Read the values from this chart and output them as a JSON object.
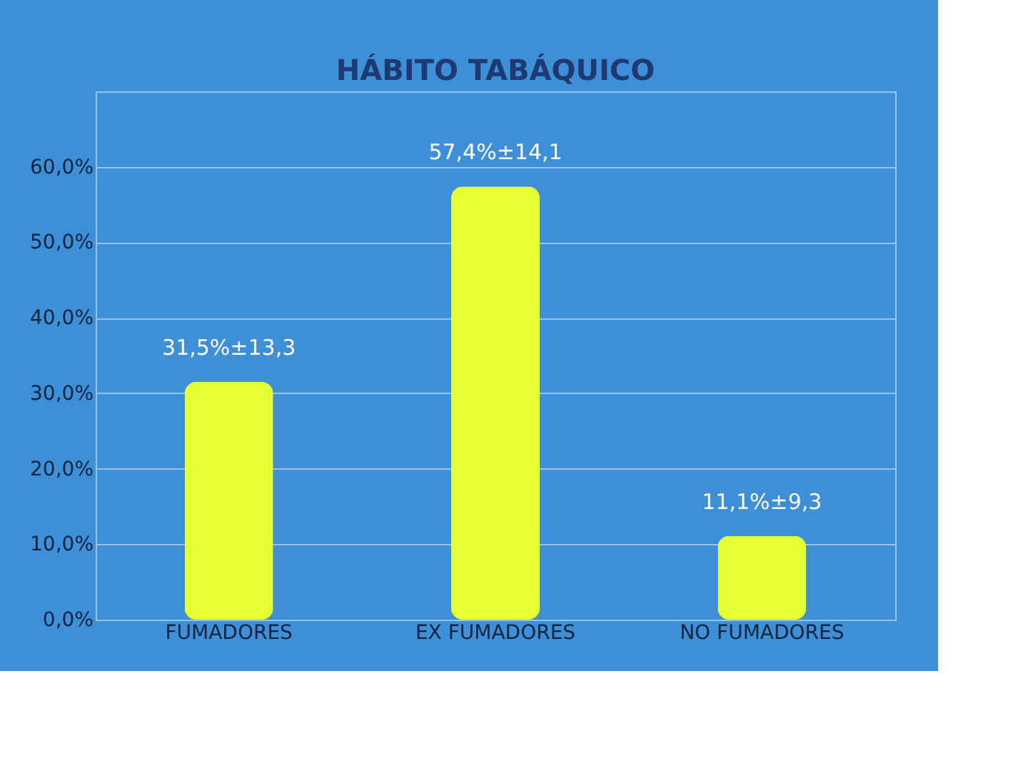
{
  "chart_data": {
    "type": "bar",
    "title": "HÁBITO TABÁQUICO",
    "categories": [
      "FUMADORES",
      "EX FUMADORES",
      "NO FUMADORES"
    ],
    "values": [
      31.5,
      57.4,
      11.1
    ],
    "value_labels": [
      "31,5%±13,3",
      "57,4%±14,1",
      "11,1%±9,3"
    ],
    "color": "#e6ff33",
    "ylim": [
      0,
      70
    ],
    "yticks": [
      {
        "value": 0,
        "label": "0,0%"
      },
      {
        "value": 10,
        "label": "10,0%"
      },
      {
        "value": 20,
        "label": "20,0%"
      },
      {
        "value": 30,
        "label": "30,0%"
      },
      {
        "value": 40,
        "label": "40,0%"
      },
      {
        "value": 50,
        "label": "50,0%"
      },
      {
        "value": 60,
        "label": "60,0%"
      }
    ],
    "grid": "y"
  }
}
